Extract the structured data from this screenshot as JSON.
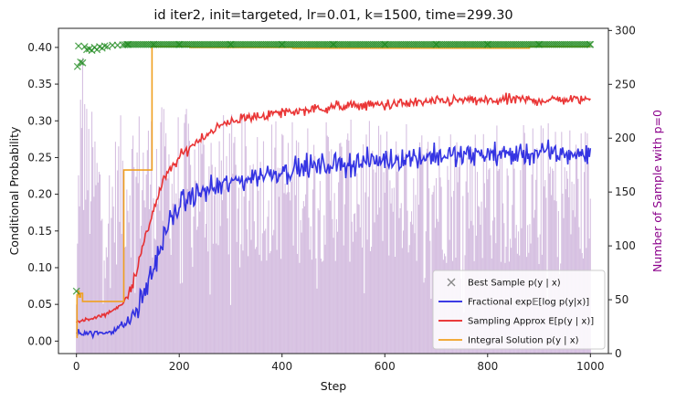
{
  "chart_data": {
    "type": "line",
    "title": "id iter2, init=targeted, lr=0.01, k=1500, time=299.30",
    "xlabel": "Step",
    "ylabel": "Conditional Probability",
    "y2label": "Number of Sample with p=0",
    "xlim": [
      -35,
      1035
    ],
    "ylim": [
      -0.017,
      0.426
    ],
    "y2lim": [
      0,
      302
    ],
    "x_ticks": [
      0,
      200,
      400,
      600,
      800,
      1000
    ],
    "y_ticks": [
      0.0,
      0.05,
      0.1,
      0.15,
      0.2,
      0.25,
      0.3,
      0.35,
      0.4
    ],
    "y_tick_labels": [
      "0.00",
      "0.05",
      "0.10",
      "0.15",
      "0.20",
      "0.25",
      "0.30",
      "0.35",
      "0.40"
    ],
    "y2_ticks": [
      0,
      50,
      100,
      150,
      200,
      250,
      300
    ],
    "legend": {
      "position": "lower right",
      "entries": [
        {
          "label": "Best Sample p(y | x)",
          "series": "best_sample",
          "marker": "x"
        },
        {
          "label": "Fractional exp𝔼[log p(y|x)]",
          "series": "fractional",
          "marker": "line"
        },
        {
          "label": "Sampling Approx E[p(y | x)]",
          "series": "sampling",
          "marker": "line"
        },
        {
          "label": "Integral Solution p(y | x)",
          "series": "integral",
          "marker": "line"
        }
      ]
    },
    "series": [
      {
        "name": "Best Sample p(y | x)",
        "key": "best_sample",
        "color": "#228b22",
        "style": "x-markers",
        "points": [
          [
            0,
            0.068
          ],
          [
            2,
            0.374
          ],
          [
            4,
            0.402
          ],
          [
            8,
            0.38
          ],
          [
            12,
            0.379
          ],
          [
            16,
            0.401
          ],
          [
            20,
            0.397
          ],
          [
            25,
            0.398
          ],
          [
            30,
            0.396
          ],
          [
            35,
            0.4
          ],
          [
            40,
            0.397
          ],
          [
            45,
            0.401
          ],
          [
            50,
            0.399
          ],
          [
            55,
            0.402
          ],
          [
            60,
            0.401
          ],
          [
            70,
            0.403
          ],
          [
            80,
            0.403
          ],
          [
            100,
            0.404
          ],
          [
            150,
            0.404
          ],
          [
            200,
            0.404
          ],
          [
            300,
            0.404
          ],
          [
            400,
            0.404
          ],
          [
            500,
            0.404
          ],
          [
            600,
            0.404
          ],
          [
            700,
            0.404
          ],
          [
            800,
            0.404
          ],
          [
            900,
            0.404
          ],
          [
            1000,
            0.404
          ]
        ]
      },
      {
        "name": "Fractional exp𝔼[log p(y|x)]",
        "key": "fractional",
        "color": "#2020e0",
        "style": "line",
        "points": [
          [
            0,
            0.014
          ],
          [
            20,
            0.011
          ],
          [
            40,
            0.01
          ],
          [
            60,
            0.012
          ],
          [
            80,
            0.018
          ],
          [
            100,
            0.025
          ],
          [
            120,
            0.045
          ],
          [
            140,
            0.08
          ],
          [
            160,
            0.12
          ],
          [
            180,
            0.16
          ],
          [
            200,
            0.185
          ],
          [
            220,
            0.195
          ],
          [
            250,
            0.205
          ],
          [
            300,
            0.215
          ],
          [
            350,
            0.225
          ],
          [
            400,
            0.232
          ],
          [
            450,
            0.237
          ],
          [
            500,
            0.24
          ],
          [
            550,
            0.243
          ],
          [
            600,
            0.247
          ],
          [
            650,
            0.25
          ],
          [
            700,
            0.253
          ],
          [
            750,
            0.252
          ],
          [
            800,
            0.255
          ],
          [
            850,
            0.254
          ],
          [
            900,
            0.256
          ],
          [
            950,
            0.255
          ],
          [
            1000,
            0.254
          ]
        ],
        "noise": 0.013
      },
      {
        "name": "Sampling Approx E[p(y | x)]",
        "key": "sampling",
        "color": "#e82020",
        "style": "line",
        "points": [
          [
            0,
            0.027
          ],
          [
            30,
            0.03
          ],
          [
            60,
            0.038
          ],
          [
            90,
            0.05
          ],
          [
            110,
            0.08
          ],
          [
            130,
            0.13
          ],
          [
            150,
            0.18
          ],
          [
            170,
            0.22
          ],
          [
            200,
            0.25
          ],
          [
            230,
            0.27
          ],
          [
            260,
            0.285
          ],
          [
            300,
            0.3
          ],
          [
            350,
            0.306
          ],
          [
            400,
            0.311
          ],
          [
            450,
            0.315
          ],
          [
            500,
            0.319
          ],
          [
            550,
            0.321
          ],
          [
            600,
            0.322
          ],
          [
            650,
            0.324
          ],
          [
            700,
            0.326
          ],
          [
            750,
            0.328
          ],
          [
            800,
            0.327
          ],
          [
            850,
            0.329
          ],
          [
            900,
            0.328
          ],
          [
            950,
            0.329
          ],
          [
            1000,
            0.329
          ]
        ],
        "noise": 0.006
      },
      {
        "name": "Integral Solution p(y | x)",
        "key": "integral",
        "color": "#f0a020",
        "style": "step",
        "points": [
          [
            0,
            0.005
          ],
          [
            1,
            0.063
          ],
          [
            3,
            0.068
          ],
          [
            5,
            0.06
          ],
          [
            8,
            0.065
          ],
          [
            12,
            0.054
          ],
          [
            90,
            0.054
          ],
          [
            92,
            0.233
          ],
          [
            145,
            0.233
          ],
          [
            147,
            0.401
          ],
          [
            220,
            0.401
          ],
          [
            221,
            0.4
          ],
          [
            420,
            0.4
          ],
          [
            421,
            0.399
          ],
          [
            880,
            0.399
          ],
          [
            881,
            0.401
          ],
          [
            1000,
            0.401
          ]
        ]
      },
      {
        "name": "Number of Sample with p=0",
        "key": "bars",
        "axis": "right",
        "color": "#b48cc8",
        "style": "bars",
        "points": [
          [
            0,
            40
          ],
          [
            8,
            245
          ],
          [
            20,
            165
          ],
          [
            40,
            150
          ],
          [
            60,
            120
          ],
          [
            80,
            150
          ],
          [
            100,
            160
          ],
          [
            150,
            160
          ],
          [
            200,
            158
          ],
          [
            300,
            155
          ],
          [
            400,
            152
          ],
          [
            500,
            150
          ],
          [
            600,
            150
          ],
          [
            700,
            150
          ],
          [
            800,
            150
          ],
          [
            900,
            150
          ],
          [
            1000,
            150
          ]
        ],
        "noise": 0.45
      }
    ]
  }
}
